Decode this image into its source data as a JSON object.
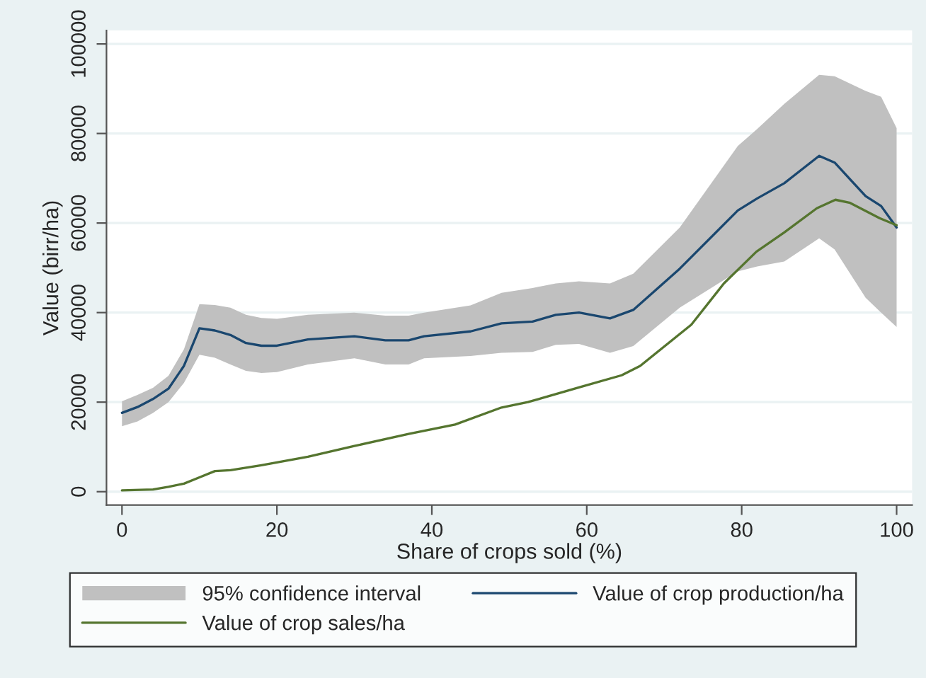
{
  "chart_data": {
    "type": "line",
    "xlabel": "Share of crops sold (%)",
    "ylabel": "Value (birr/ha)",
    "xlim": [
      -2,
      102
    ],
    "xticks": [
      0,
      20,
      40,
      60,
      80,
      100
    ],
    "ylim": [
      -3000,
      103000
    ],
    "yticks": [
      0,
      20000,
      40000,
      60000,
      80000,
      100000
    ],
    "grid": "y",
    "legend": "bottom",
    "marker": "none",
    "line_style": "solid",
    "series": [
      {
        "name": "95% confidence interval",
        "type": "area",
        "color": "#c0c0c0",
        "x": [
          0,
          2,
          4,
          6,
          8,
          10,
          12,
          14,
          16,
          18,
          20,
          24,
          30,
          34,
          37,
          39,
          45,
          49,
          53,
          56,
          59,
          63,
          66,
          72,
          79.5,
          82,
          85.5,
          90,
          92,
          96,
          98,
          100
        ],
        "values": [
          null,
          null,
          null,
          null,
          null,
          null,
          null,
          null,
          null,
          null,
          null,
          null,
          null,
          null,
          null,
          null,
          null,
          null,
          null,
          null,
          null,
          null,
          null,
          null,
          null,
          null,
          null,
          null,
          null,
          null,
          null,
          null
        ],
        "lower": [
          14600,
          15700,
          17600,
          20000,
          24300,
          30600,
          29900,
          28400,
          27000,
          26500,
          26700,
          28400,
          29800,
          28400,
          28400,
          29800,
          30300,
          31000,
          31200,
          32800,
          33000,
          31000,
          32500,
          41100,
          49200,
          50300,
          51400,
          56600,
          54100,
          43300,
          40000,
          36800
        ],
        "upper": [
          20200,
          21600,
          23200,
          25900,
          31800,
          41900,
          41700,
          41100,
          39500,
          38800,
          38600,
          39500,
          40000,
          39300,
          39300,
          40000,
          41600,
          44400,
          45500,
          46500,
          47000,
          46500,
          48700,
          59000,
          77200,
          81000,
          86600,
          93100,
          92800,
          89500,
          88200,
          81200
        ]
      },
      {
        "name": "Value of crop production/ha",
        "type": "line",
        "color": "#1a476f",
        "x": [
          0,
          2,
          4,
          6,
          8,
          10,
          12,
          14,
          16,
          18,
          20,
          24,
          30,
          34,
          37,
          39,
          45,
          49,
          53,
          56,
          59,
          63,
          66,
          72,
          79.5,
          82,
          85.5,
          90,
          92,
          96,
          98,
          100
        ],
        "values": [
          17600,
          18900,
          20700,
          23000,
          28100,
          36500,
          36000,
          35000,
          33200,
          32600,
          32600,
          34000,
          34700,
          33800,
          33800,
          34700,
          35800,
          37600,
          38000,
          39500,
          40000,
          38700,
          40600,
          49800,
          62800,
          65500,
          68900,
          75000,
          73500,
          66000,
          63800,
          59000
        ]
      },
      {
        "name": "Value of crop sales/ha",
        "type": "line",
        "color": "#55752f",
        "x": [
          0,
          4,
          6,
          8,
          10,
          12,
          14,
          18,
          24,
          30,
          37,
          43,
          49,
          52.4,
          59,
          64.5,
          66.9,
          73.5,
          77.7,
          81.9,
          85.5,
          89.7,
          92.1,
          94,
          97.8,
          100
        ],
        "values": [
          300,
          500,
          1100,
          1800,
          3200,
          4600,
          4800,
          5900,
          7800,
          10200,
          12900,
          15000,
          18800,
          20000,
          23300,
          26000,
          28100,
          37300,
          46500,
          53600,
          57900,
          63300,
          65200,
          64500,
          61100,
          59500
        ]
      }
    ]
  }
}
